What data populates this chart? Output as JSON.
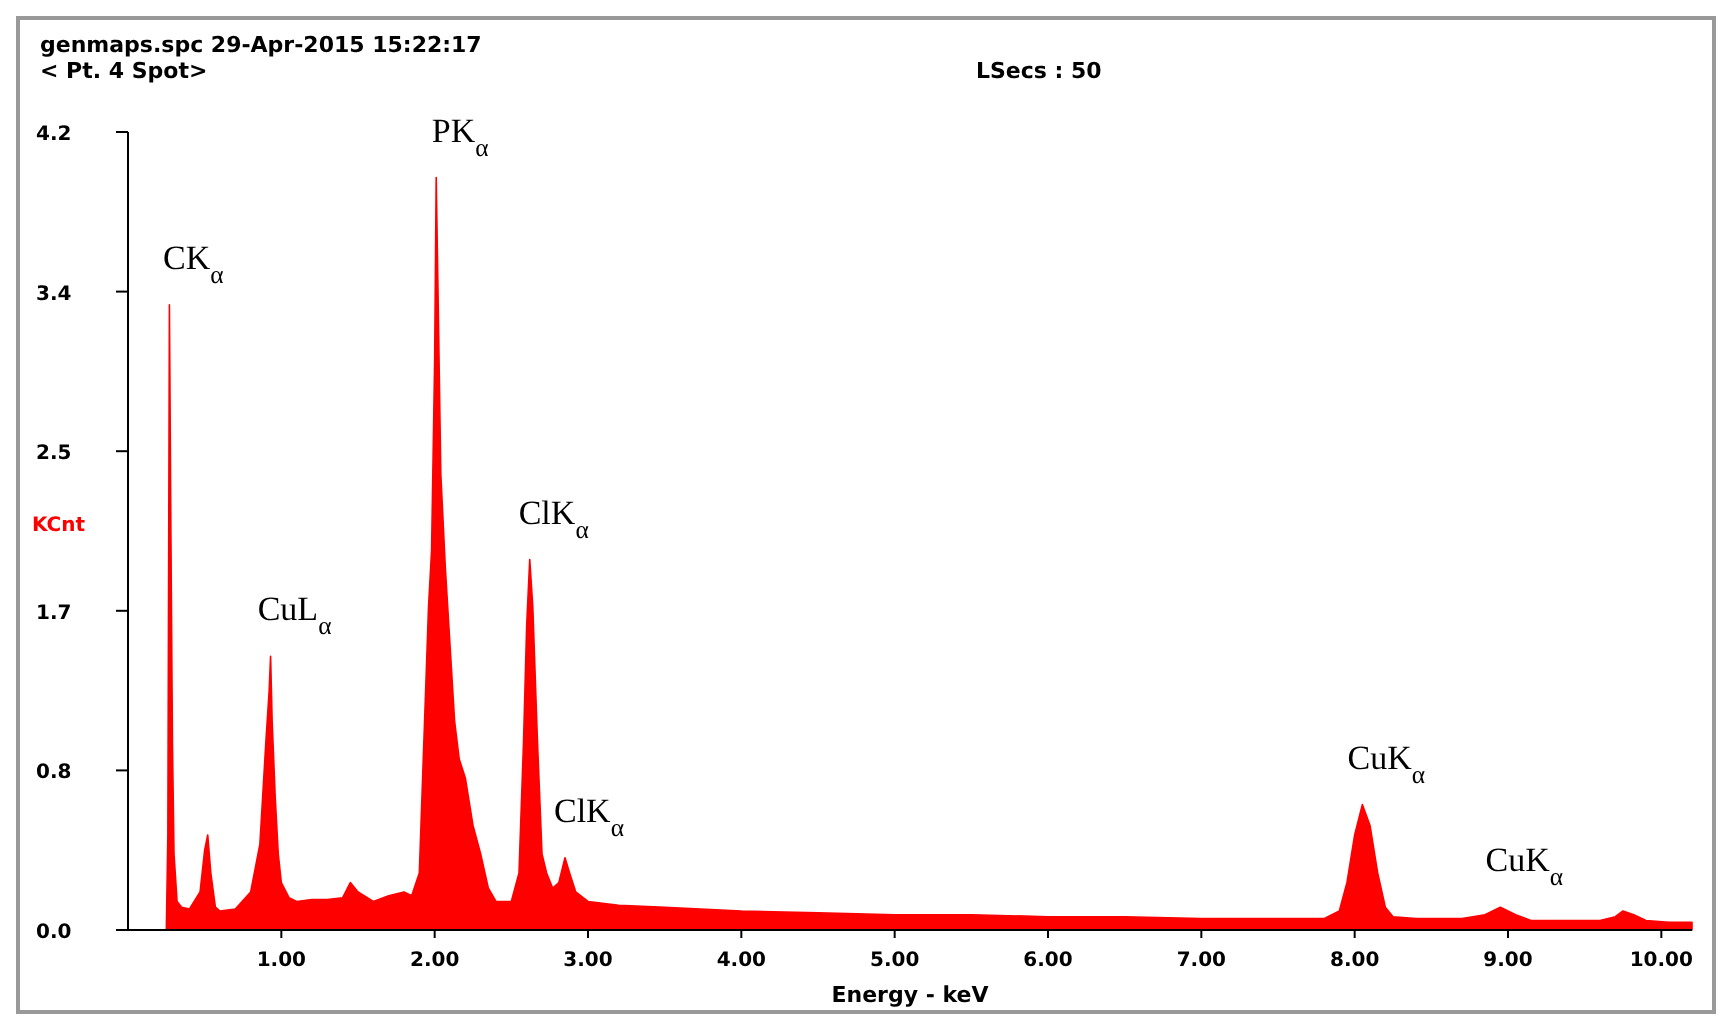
{
  "chart_data": {
    "type": "area",
    "title": "genmaps.spc  29-Apr-2015 15:22:17",
    "xlabel": "Energy - keV",
    "ylabel": "KCnt",
    "annotations": [
      "< Pt.  4 Spot>",
      "LSecs :  50",
      {
        "text": "CK$_{α}$",
        "x": 0.27,
        "y": 3.29
      },
      {
        "text": "CuL$_{α}$",
        "x": 0.93,
        "y": 1.44
      },
      {
        "text": "PK$_{α}$",
        "x": 2.01,
        "y": 3.96
      },
      {
        "text": "ClK$_{α}$",
        "x": 2.62,
        "y": 1.95
      },
      {
        "text": "ClK$_{α}$",
        "x": 2.85,
        "y": 0.38
      },
      {
        "text": "CuK$_{α}$",
        "x": 8.05,
        "y": 0.66
      },
      {
        "text": "CuK$_{α}$",
        "x": 8.95,
        "y": 0.12
      }
    ],
    "xlim": [
      0,
      10.2
    ],
    "xticks": [
      {
        "value": 1,
        "label": "1.00"
      },
      {
        "value": 2,
        "label": "2.00"
      },
      {
        "value": 3,
        "label": "3.00"
      },
      {
        "value": 4,
        "label": "4.00"
      },
      {
        "value": 5,
        "label": "5.00"
      },
      {
        "value": 6,
        "label": "6.00"
      },
      {
        "value": 7,
        "label": "7.00"
      },
      {
        "value": 8,
        "label": "8.00"
      },
      {
        "value": 9,
        "label": "9.00"
      },
      {
        "value": 10,
        "label": "10.00"
      }
    ],
    "ylim": [
      0,
      4.2
    ],
    "yticks": [
      {
        "value": 0,
        "label": "0.0"
      },
      {
        "value": 0.84,
        "label": "0.8"
      },
      {
        "value": 1.68,
        "label": "1.7"
      },
      {
        "value": 2.52,
        "label": "2.5"
      },
      {
        "value": 3.36,
        "label": "3.4"
      },
      {
        "value": 4.2,
        "label": "4.2"
      }
    ],
    "grid": false,
    "series": [
      {
        "color": "#ff0000",
        "x": [
          0.25,
          0.26,
          0.27,
          0.28,
          0.29,
          0.3,
          0.32,
          0.35,
          0.4,
          0.47,
          0.5,
          0.52,
          0.54,
          0.57,
          0.6,
          0.7,
          0.8,
          0.86,
          0.9,
          0.92,
          0.93,
          0.94,
          0.96,
          0.98,
          1.0,
          1.05,
          1.1,
          1.2,
          1.3,
          1.4,
          1.45,
          1.5,
          1.6,
          1.7,
          1.8,
          1.85,
          1.9,
          1.93,
          1.96,
          1.98,
          2.0,
          2.01,
          2.02,
          2.04,
          2.07,
          2.1,
          2.13,
          2.16,
          2.2,
          2.25,
          2.3,
          2.35,
          2.4,
          2.5,
          2.55,
          2.58,
          2.6,
          2.62,
          2.64,
          2.67,
          2.7,
          2.73,
          2.77,
          2.81,
          2.85,
          2.88,
          2.92,
          3.0,
          3.2,
          3.5,
          4.0,
          4.5,
          5.0,
          5.5,
          6.0,
          6.5,
          7.0,
          7.5,
          7.8,
          7.9,
          7.95,
          8.0,
          8.05,
          8.1,
          8.15,
          8.2,
          8.25,
          8.4,
          8.7,
          8.85,
          8.95,
          9.05,
          9.15,
          9.4,
          9.6,
          9.7,
          9.75,
          9.82,
          9.9,
          10.05,
          10.2
        ],
        "values": [
          0,
          0.5,
          3.29,
          2.06,
          0.97,
          0.4,
          0.15,
          0.12,
          0.11,
          0.2,
          0.42,
          0.5,
          0.3,
          0.12,
          0.1,
          0.11,
          0.2,
          0.45,
          1.0,
          1.25,
          1.44,
          1.1,
          0.7,
          0.4,
          0.25,
          0.17,
          0.15,
          0.16,
          0.16,
          0.17,
          0.25,
          0.2,
          0.15,
          0.18,
          0.2,
          0.18,
          0.3,
          1.0,
          1.7,
          2.0,
          3.0,
          3.96,
          3.45,
          2.4,
          1.9,
          1.5,
          1.1,
          0.9,
          0.8,
          0.55,
          0.4,
          0.22,
          0.15,
          0.15,
          0.3,
          1.0,
          1.6,
          1.95,
          1.7,
          1.0,
          0.4,
          0.3,
          0.22,
          0.25,
          0.38,
          0.3,
          0.2,
          0.15,
          0.13,
          0.12,
          0.1,
          0.09,
          0.08,
          0.08,
          0.07,
          0.07,
          0.06,
          0.06,
          0.06,
          0.1,
          0.25,
          0.5,
          0.66,
          0.55,
          0.3,
          0.12,
          0.07,
          0.06,
          0.06,
          0.08,
          0.12,
          0.08,
          0.05,
          0.05,
          0.05,
          0.07,
          0.1,
          0.08,
          0.05,
          0.04,
          0.04
        ]
      }
    ]
  }
}
